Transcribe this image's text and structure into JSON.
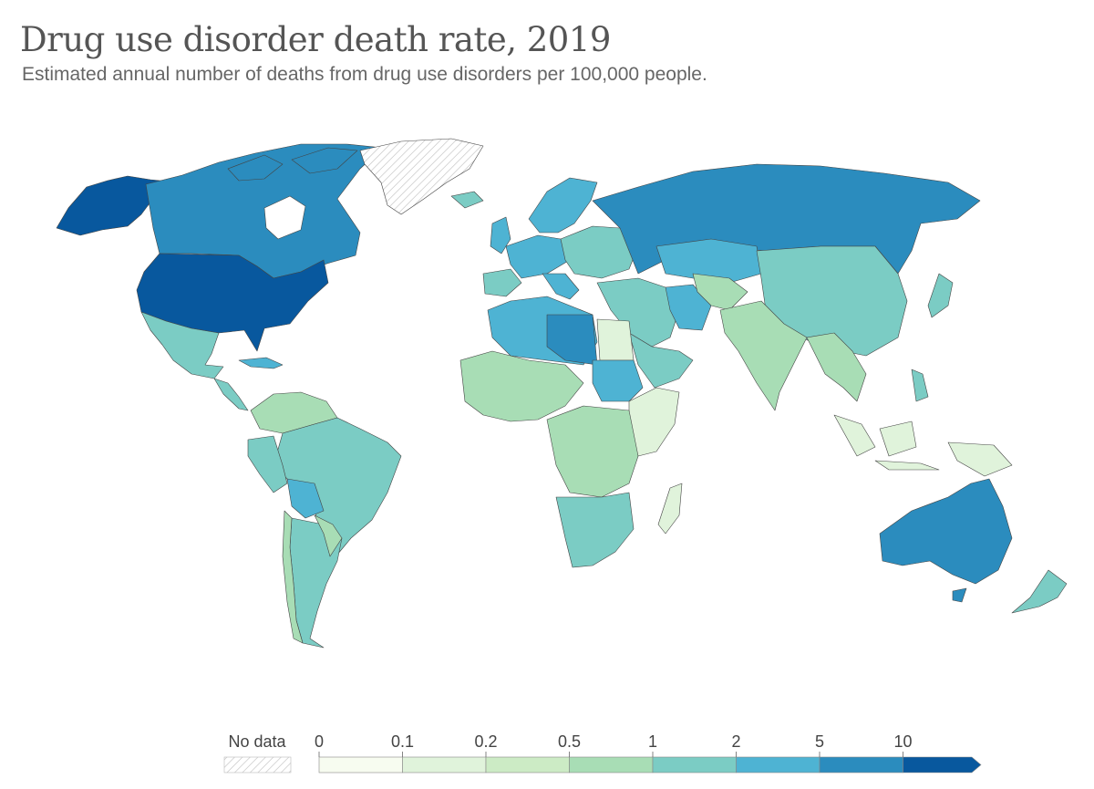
{
  "title": "Drug use disorder death rate, 2019",
  "subtitle": "Estimated annual number of deaths from drug use disorders per 100,000 people.",
  "legend": {
    "no_data_label": "No data",
    "ticks": [
      "0",
      "0.1",
      "0.2",
      "0.5",
      "1",
      "2",
      "5",
      "10"
    ],
    "bin_colors": [
      "#f7fcf0",
      "#e0f3db",
      "#ccebc5",
      "#a8ddb5",
      "#7bccc4",
      "#4eb3d3",
      "#2b8cbe",
      "#08589e"
    ]
  },
  "colors": {
    "c0": "#f7fcf0",
    "c01": "#e0f3db",
    "c02": "#ccebc5",
    "c05": "#a8ddb5",
    "c1": "#7bccc4",
    "c2": "#4eb3d3",
    "c5": "#2b8cbe",
    "c10": "#08589e",
    "no_data": "#ffffff",
    "border": "#444444"
  }
}
